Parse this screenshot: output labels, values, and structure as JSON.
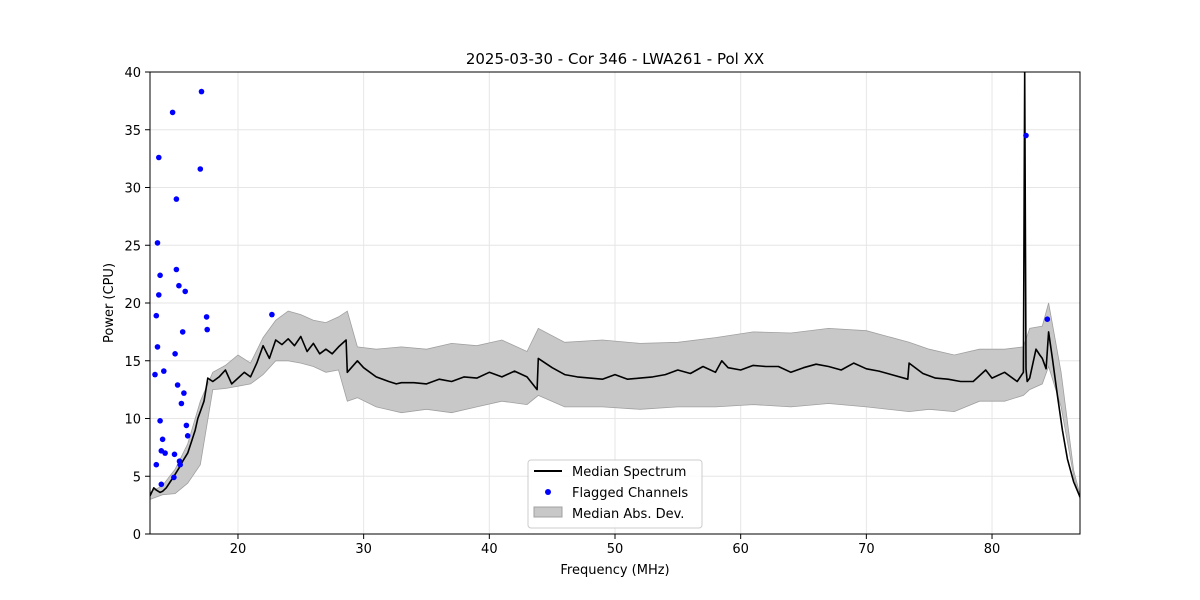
{
  "chart_data": {
    "type": "line",
    "title": "2025-03-30 - Cor 346 - LWA261 - Pol XX",
    "xlabel": "Frequency (MHz)",
    "ylabel": "Power (CPU)",
    "xlim": [
      13.0,
      87.0
    ],
    "ylim": [
      0,
      40
    ],
    "xticks": [
      20,
      30,
      40,
      50,
      60,
      70,
      80
    ],
    "yticks": [
      0,
      5,
      10,
      15,
      20,
      25,
      30,
      35,
      40
    ],
    "grid": true,
    "legend_position": "bottom-center",
    "legend": {
      "median_label": "Median Spectrum",
      "flagged_label": "Flagged Channels",
      "mad_label": "Median Abs. Dev."
    },
    "colors": {
      "median": "#000000",
      "flagged": "#0000ff",
      "mad_fill": "#c8c8c8",
      "mad_edge": "#a0a0a0",
      "grid": "#e6e6e6"
    },
    "series": [
      {
        "name": "Median Spectrum",
        "x": [
          13.0,
          13.3,
          13.5,
          13.8,
          14.0,
          14.3,
          14.6,
          14.9,
          15.3,
          15.6,
          16.0,
          16.3,
          16.6,
          16.8,
          17.0,
          17.3,
          17.6,
          18.0,
          18.5,
          19.0,
          19.5,
          20.0,
          20.5,
          21.0,
          21.5,
          22.0,
          22.5,
          23.0,
          23.5,
          24.0,
          24.5,
          25.0,
          25.5,
          26.0,
          26.5,
          27.0,
          27.5,
          28.0,
          28.6,
          28.7,
          29.5,
          30.0,
          31.0,
          32.0,
          32.6,
          33.0,
          34.0,
          35.0,
          36.0,
          37.0,
          38.0,
          39.0,
          40.0,
          41.0,
          42.0,
          43.0,
          43.8,
          43.9,
          45.0,
          46.0,
          47.0,
          48.0,
          49.0,
          50.0,
          51.0,
          52.0,
          53.0,
          54.0,
          55.0,
          56.0,
          57.0,
          58.0,
          58.5,
          59.0,
          60.0,
          61.0,
          62.0,
          63.0,
          64.0,
          65.0,
          66.0,
          67.0,
          68.0,
          69.0,
          70.0,
          71.0,
          72.0,
          73.3,
          73.4,
          74.5,
          75.5,
          76.5,
          77.5,
          78.5,
          79.5,
          80.0,
          81.0,
          82.0,
          82.5,
          82.6,
          82.7,
          82.8,
          83.0,
          83.5,
          83.8,
          84.0,
          84.3,
          84.5,
          84.8,
          85.2,
          85.6,
          86.0,
          86.5,
          87.0
        ],
        "y": [
          3.3,
          4.0,
          3.8,
          3.6,
          3.7,
          4.0,
          4.5,
          5.0,
          5.7,
          6.3,
          7.0,
          8.0,
          9.0,
          10.0,
          10.6,
          11.5,
          13.5,
          13.2,
          13.6,
          14.2,
          13.0,
          13.5,
          14.0,
          13.6,
          14.8,
          16.3,
          15.2,
          16.8,
          16.4,
          16.9,
          16.3,
          17.1,
          15.8,
          16.5,
          15.6,
          16.0,
          15.6,
          16.2,
          16.8,
          14.0,
          15.0,
          14.4,
          13.6,
          13.2,
          13.0,
          13.1,
          13.1,
          13.0,
          13.4,
          13.2,
          13.6,
          13.5,
          14.0,
          13.6,
          14.1,
          13.6,
          12.5,
          15.2,
          14.4,
          13.8,
          13.6,
          13.5,
          13.4,
          13.8,
          13.4,
          13.5,
          13.6,
          13.8,
          14.2,
          13.9,
          14.5,
          14.0,
          15.0,
          14.4,
          14.2,
          14.6,
          14.5,
          14.5,
          14.0,
          14.4,
          14.7,
          14.5,
          14.2,
          14.8,
          14.3,
          14.1,
          13.8,
          13.4,
          14.8,
          13.9,
          13.5,
          13.4,
          13.2,
          13.2,
          14.2,
          13.5,
          14.0,
          13.2,
          14.0,
          40.0,
          14.3,
          13.2,
          13.5,
          16.0,
          15.5,
          15.2,
          14.3,
          17.5,
          15.2,
          12.0,
          9.0,
          6.5,
          4.5,
          3.2
        ]
      },
      {
        "name": "Median Abs. Dev.",
        "x": [
          13.0,
          14.0,
          15.0,
          16.0,
          17.0,
          18.0,
          19.0,
          20.0,
          21.0,
          22.0,
          23.0,
          24.0,
          25.0,
          26.0,
          27.0,
          28.0,
          28.7,
          29.5,
          31.0,
          33.0,
          35.0,
          37.0,
          39.0,
          41.0,
          43.0,
          43.9,
          46.0,
          49.0,
          52.0,
          55.0,
          58.0,
          61.0,
          64.0,
          67.0,
          70.0,
          73.4,
          75.0,
          77.0,
          79.0,
          81.0,
          82.5,
          83.0,
          84.0,
          84.5,
          85.5,
          86.5,
          87.0
        ],
        "upper": [
          3.6,
          4.2,
          5.6,
          7.8,
          11.5,
          14.0,
          14.6,
          15.5,
          14.8,
          17.0,
          18.5,
          19.3,
          19.0,
          18.5,
          18.3,
          18.8,
          19.3,
          16.2,
          16.0,
          16.2,
          16.0,
          16.5,
          16.3,
          16.8,
          15.8,
          17.8,
          16.6,
          16.8,
          16.5,
          16.6,
          17.0,
          17.5,
          17.4,
          17.8,
          17.6,
          16.6,
          16.0,
          15.5,
          16.0,
          16.0,
          16.2,
          17.8,
          18.0,
          20.0,
          14.0,
          5.5,
          3.4
        ],
        "lower": [
          3.0,
          3.4,
          3.5,
          4.4,
          6.0,
          12.5,
          12.6,
          12.8,
          13.0,
          13.8,
          15.0,
          15.0,
          14.8,
          14.5,
          14.0,
          14.2,
          11.5,
          11.8,
          11.0,
          10.5,
          10.8,
          10.5,
          11.0,
          11.5,
          11.2,
          12.0,
          11.0,
          11.0,
          10.8,
          11.0,
          11.0,
          11.2,
          11.0,
          11.3,
          11.0,
          10.6,
          10.8,
          10.6,
          11.5,
          11.5,
          12.0,
          12.5,
          13.0,
          14.5,
          11.0,
          5.0,
          3.0
        ]
      },
      {
        "name": "Flagged Channels",
        "x": [
          13.4,
          13.5,
          13.5,
          13.6,
          13.6,
          13.7,
          13.7,
          13.8,
          13.8,
          13.9,
          13.9,
          14.0,
          14.1,
          14.2,
          14.8,
          14.9,
          14.95,
          15.0,
          15.1,
          15.1,
          15.2,
          15.3,
          15.35,
          15.4,
          15.5,
          15.6,
          15.7,
          15.8,
          15.9,
          16.0,
          17.0,
          17.1,
          17.5,
          17.55,
          22.7,
          82.7,
          84.4
        ],
        "y": [
          13.8,
          6.0,
          18.9,
          16.2,
          25.2,
          20.7,
          32.6,
          9.8,
          22.4,
          4.3,
          7.2,
          8.2,
          14.1,
          7.0,
          36.5,
          4.9,
          6.9,
          15.6,
          29.0,
          22.9,
          12.9,
          21.5,
          6.3,
          6.0,
          11.3,
          17.5,
          12.2,
          21.0,
          9.4,
          8.5,
          31.6,
          38.3,
          18.8,
          17.7,
          19.0,
          34.5,
          18.6
        ]
      }
    ]
  }
}
